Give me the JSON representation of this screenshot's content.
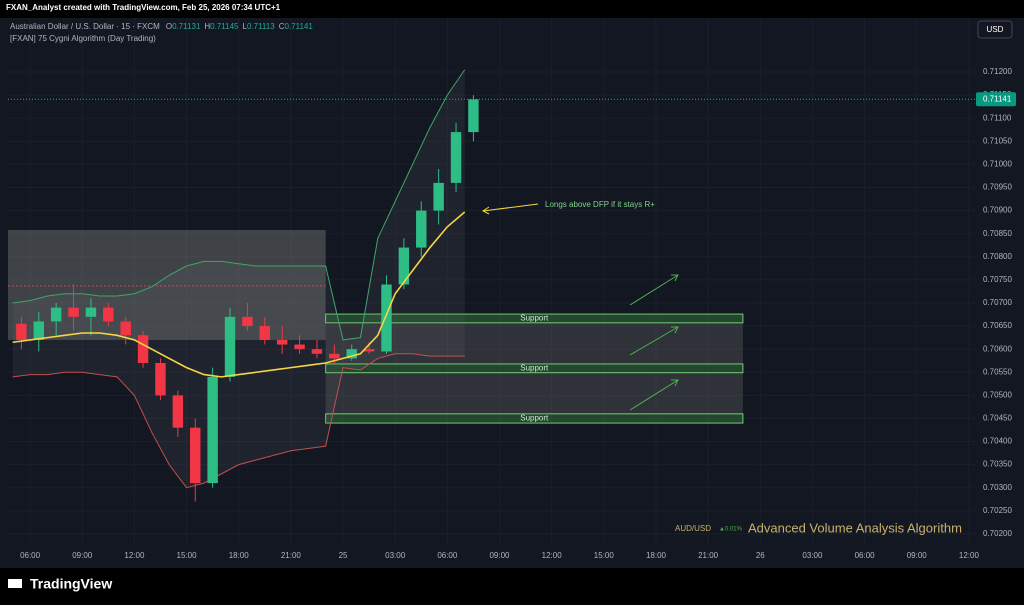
{
  "header": {
    "credit": "FXAN_Analyst created with TradingView.com, Feb 25, 2026 07:34 UTC+1",
    "symbol": "Australian Dollar / U.S. Dollar · 15 · FXCM",
    "ohlc": [
      {
        "label": "O",
        "value": "0.71131"
      },
      {
        "label": "H",
        "value": "0.71145"
      },
      {
        "label": "L",
        "value": "0.71113"
      },
      {
        "label": "C",
        "value": "0.71141"
      }
    ],
    "indicator": "[FXAN] 75 Cygni Algorithm (Day Trading)"
  },
  "chart_data": {
    "type": "candlestick",
    "currency": "USD",
    "xlim": [
      4.73,
      60.35
    ],
    "ylim": [
      0.70176,
      0.71317
    ],
    "xticks": [
      {
        "value": 6,
        "label": "06:00"
      },
      {
        "value": 9,
        "label": "09:00"
      },
      {
        "value": 12,
        "label": "12:00"
      },
      {
        "value": 15,
        "label": "15:00"
      },
      {
        "value": 18,
        "label": "18:00"
      },
      {
        "value": 21,
        "label": "21:00"
      },
      {
        "value": 24,
        "label": "25"
      },
      {
        "value": 27,
        "label": "03:00"
      },
      {
        "value": 30,
        "label": "06:00"
      },
      {
        "value": 33,
        "label": "09:00"
      },
      {
        "value": 36,
        "label": "12:00"
      },
      {
        "value": 39,
        "label": "15:00"
      },
      {
        "value": 42,
        "label": "18:00"
      },
      {
        "value": 45,
        "label": "21:00"
      },
      {
        "value": 48,
        "label": "26"
      },
      {
        "value": 51,
        "label": "03:00"
      },
      {
        "value": 54,
        "label": "06:00"
      },
      {
        "value": 57,
        "label": "09:00"
      },
      {
        "value": 60,
        "label": "12:00"
      }
    ],
    "yticks": [
      {
        "value": 0.702,
        "label": "0.70200"
      },
      {
        "value": 0.7025,
        "label": "0.70250"
      },
      {
        "value": 0.703,
        "label": "0.70300"
      },
      {
        "value": 0.7035,
        "label": "0.70350"
      },
      {
        "value": 0.704,
        "label": "0.70400"
      },
      {
        "value": 0.7045,
        "label": "0.70450"
      },
      {
        "value": 0.705,
        "label": "0.70500"
      },
      {
        "value": 0.7055,
        "label": "0.70550"
      },
      {
        "value": 0.706,
        "label": "0.70600"
      },
      {
        "value": 0.7065,
        "label": "0.70650"
      },
      {
        "value": 0.707,
        "label": "0.70700"
      },
      {
        "value": 0.7075,
        "label": "0.70750"
      },
      {
        "value": 0.708,
        "label": "0.70800"
      },
      {
        "value": 0.7085,
        "label": "0.70850"
      },
      {
        "value": 0.709,
        "label": "0.70900"
      },
      {
        "value": 0.7095,
        "label": "0.70950"
      },
      {
        "value": 0.71,
        "label": "0.71000"
      },
      {
        "value": 0.7105,
        "label": "0.71050"
      },
      {
        "value": 0.711,
        "label": "0.71100"
      },
      {
        "value": 0.7115,
        "label": "0.71150"
      },
      {
        "value": 0.712,
        "label": "0.71200"
      }
    ],
    "last_price": {
      "value": 0.71141,
      "label": "0.71141"
    },
    "up_color": "#2ebd85",
    "down_color": "#f23645",
    "candles": {
      "x": [
        5,
        6,
        7,
        8,
        9,
        10,
        11,
        12,
        13,
        14,
        15,
        16,
        17,
        18,
        19,
        20,
        21,
        22,
        23,
        24,
        25,
        26,
        27,
        28,
        29,
        30,
        31
      ],
      "open": [
        0.70655,
        0.7062,
        0.7066,
        0.7069,
        0.7067,
        0.7069,
        0.7066,
        0.7063,
        0.7057,
        0.705,
        0.7043,
        0.7031,
        0.7054,
        0.7067,
        0.7065,
        0.7062,
        0.7061,
        0.706,
        0.7059,
        0.7058,
        0.706,
        0.70595,
        0.7074,
        0.7082,
        0.709,
        0.7096,
        0.7107
      ],
      "high": [
        0.7067,
        0.7068,
        0.707,
        0.7074,
        0.7071,
        0.707,
        0.7067,
        0.7064,
        0.7058,
        0.7051,
        0.7045,
        0.7056,
        0.7069,
        0.707,
        0.7067,
        0.7065,
        0.7063,
        0.7062,
        0.7061,
        0.7061,
        0.70615,
        0.7076,
        0.7084,
        0.7092,
        0.7099,
        0.7109,
        0.7115
      ],
      "low": [
        0.706,
        0.70595,
        0.7063,
        0.7064,
        0.7063,
        0.7065,
        0.7061,
        0.7056,
        0.7049,
        0.7041,
        0.7027,
        0.703,
        0.7053,
        0.7064,
        0.7061,
        0.7059,
        0.7059,
        0.7058,
        0.7057,
        0.70575,
        0.7059,
        0.7059,
        0.7073,
        0.708,
        0.7087,
        0.7094,
        0.7105
      ],
      "close": [
        0.7062,
        0.7066,
        0.7069,
        0.7067,
        0.7069,
        0.7066,
        0.7063,
        0.7057,
        0.705,
        0.7043,
        0.7031,
        0.7054,
        0.7067,
        0.7065,
        0.7062,
        0.7061,
        0.706,
        0.7059,
        0.7058,
        0.706,
        0.70595,
        0.7074,
        0.7082,
        0.709,
        0.7096,
        0.7107,
        0.71141
      ]
    },
    "dfp": [
      0.70615,
      0.7062,
      0.70625,
      0.7063,
      0.70635,
      0.70635,
      0.7063,
      0.7062,
      0.706,
      0.7058,
      0.7056,
      0.70545,
      0.7054,
      0.70545,
      0.7055,
      0.70555,
      0.7056,
      0.70565,
      0.7057,
      0.7058,
      0.7059,
      0.7063,
      0.7072,
      0.7077,
      0.7082,
      0.70865,
      0.70897
    ],
    "dfp_color": "#f5d742",
    "upper_band": [
      0.707,
      0.70705,
      0.70715,
      0.7072,
      0.7072,
      0.70715,
      0.70715,
      0.7072,
      0.70735,
      0.7076,
      0.7078,
      0.7079,
      0.7079,
      0.70785,
      0.7078,
      0.7078,
      0.7078,
      0.7078,
      0.7078,
      0.7062,
      0.70625,
      0.7084,
      0.7092,
      0.71,
      0.7108,
      0.7115,
      0.71205
    ],
    "lower_band": [
      0.7054,
      0.70545,
      0.70545,
      0.7055,
      0.7055,
      0.70545,
      0.7054,
      0.705,
      0.7042,
      0.7035,
      0.703,
      0.7031,
      0.7033,
      0.7035,
      0.7036,
      0.7037,
      0.7038,
      0.70385,
      0.7039,
      0.7056,
      0.70555,
      0.7058,
      0.7059,
      0.7059,
      0.70585,
      0.70585,
      0.70585
    ],
    "range_box": {
      "x": [
        4.73,
        23
      ],
      "y": [
        0.7062,
        0.70858
      ]
    },
    "red_level": {
      "value": 0.70737,
      "x": [
        4.73,
        23
      ]
    },
    "zone_x": [
      23,
      47
    ],
    "zones": [
      {
        "label": "Support",
        "y": [
          0.70657,
          0.70676
        ]
      },
      {
        "label": "Support",
        "y": [
          0.70549,
          0.70568
        ]
      },
      {
        "label": "Support",
        "y": [
          0.7044,
          0.7046
        ]
      }
    ],
    "annotation": "Longs above DFP if it stays R+",
    "pair": "AUD/USD",
    "change": "▲0.01%",
    "watermark": "Advanced Volume Analysis Algorithm",
    "brand": "TradingView"
  }
}
